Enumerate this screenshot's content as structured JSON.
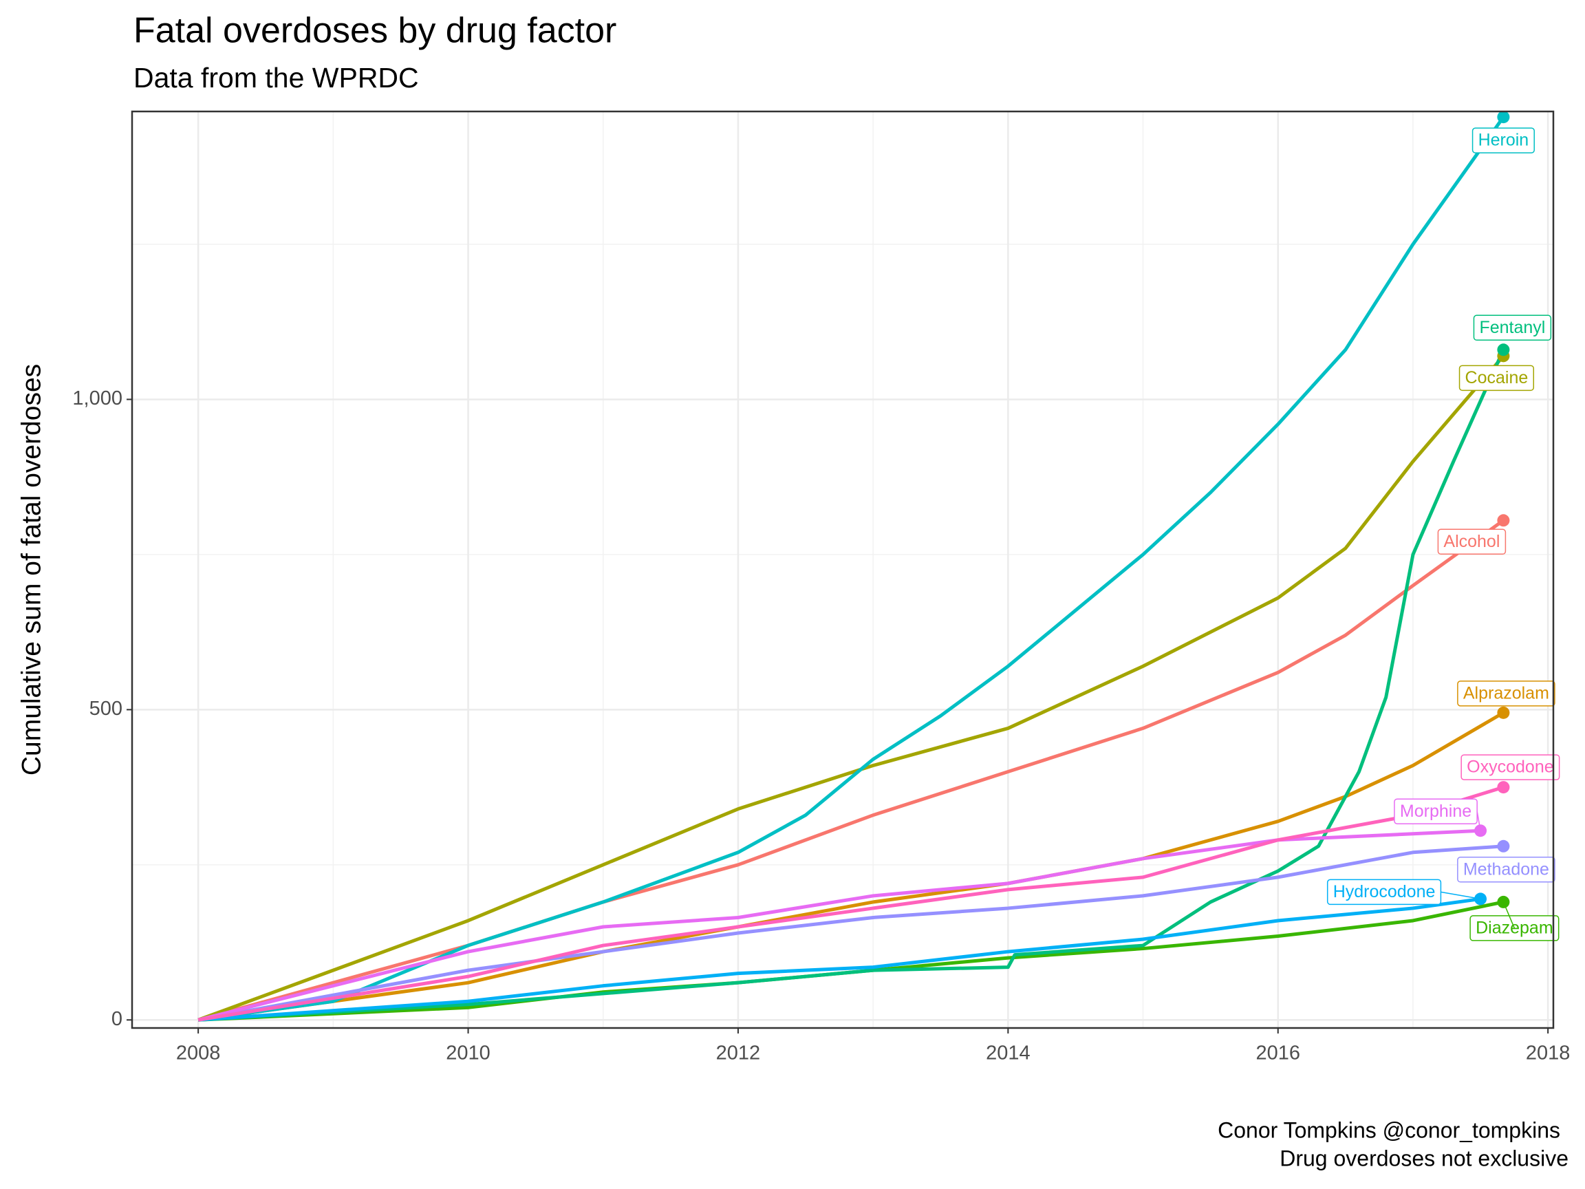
{
  "chart_data": {
    "type": "line",
    "title": "Fatal overdoses by drug factor",
    "subtitle": "Data from the WPRDC",
    "y_label": "Cumulative sum of fatal overdoses",
    "caption": [
      "Conor Tompkins @conor_tompkins",
      "Drug overdoses not exclusive"
    ],
    "xlim": [
      2007.51,
      2018.04
    ],
    "xticks": [
      2008,
      2010,
      2012,
      2014,
      2016,
      2018
    ],
    "ylim": [
      -13,
      1464
    ],
    "yticks": [
      0,
      500,
      {
        "value": 1000,
        "label": "1,000"
      }
    ],
    "grid": true,
    "series": [
      {
        "name": "Alcohol",
        "color": "#F8766D",
        "x": [
          2008,
          2009,
          2010,
          2011,
          2012,
          2013,
          2014,
          2015,
          2016,
          2016.5,
          2017,
          2017.67
        ],
        "values": [
          0,
          60,
          120,
          190,
          250,
          330,
          400,
          470,
          560,
          620,
          700,
          805
        ]
      },
      {
        "name": "Alprazolam",
        "color": "#D89000",
        "x": [
          2008,
          2010,
          2011,
          2012,
          2013,
          2014,
          2015,
          2016,
          2016.5,
          2017,
          2017.67
        ],
        "values": [
          0,
          60,
          110,
          150,
          190,
          220,
          260,
          320,
          360,
          410,
          495
        ]
      },
      {
        "name": "Cocaine",
        "color": "#A3A500",
        "x": [
          2008,
          2009,
          2010,
          2011,
          2012,
          2013,
          2014,
          2015,
          2016,
          2016.5,
          2017,
          2017.67
        ],
        "values": [
          0,
          80,
          160,
          250,
          340,
          410,
          470,
          570,
          680,
          760,
          900,
          1070
        ]
      },
      {
        "name": "Diazepam",
        "color": "#39B600",
        "x": [
          2008,
          2010,
          2011,
          2012,
          2013,
          2014,
          2015,
          2016,
          2017,
          2017.67
        ],
        "values": [
          0,
          20,
          45,
          60,
          80,
          100,
          115,
          135,
          160,
          190
        ]
      },
      {
        "name": "Fentanyl",
        "color": "#00BF7D",
        "x": [
          2008,
          2010,
          2012,
          2013,
          2014,
          2014.05,
          2015,
          2015.5,
          2016,
          2016.3,
          2016.6,
          2016.8,
          2017,
          2017.3,
          2017.67
        ],
        "values": [
          0,
          25,
          60,
          80,
          85,
          105,
          120,
          190,
          240,
          280,
          400,
          520,
          750,
          900,
          1080
        ]
      },
      {
        "name": "Heroin",
        "color": "#00BFC4",
        "x": [
          2008,
          2009,
          2010,
          2011,
          2012,
          2012.5,
          2013,
          2013.5,
          2014,
          2014.5,
          2015,
          2015.5,
          2016,
          2016.5,
          2017,
          2017.67
        ],
        "values": [
          0,
          30,
          120,
          190,
          270,
          330,
          420,
          490,
          570,
          660,
          750,
          850,
          960,
          1080,
          1250,
          1455
        ]
      },
      {
        "name": "Hydrocodone",
        "color": "#00B0F6",
        "x": [
          2008,
          2010,
          2011,
          2012,
          2013,
          2014,
          2015,
          2016,
          2017,
          2017.5
        ],
        "values": [
          0,
          30,
          55,
          75,
          85,
          110,
          130,
          160,
          180,
          195
        ]
      },
      {
        "name": "Methadone",
        "color": "#9590FF",
        "x": [
          2008,
          2010,
          2011,
          2012,
          2013,
          2014,
          2015,
          2016,
          2017,
          2017.67
        ],
        "values": [
          0,
          80,
          110,
          140,
          165,
          180,
          200,
          230,
          270,
          280
        ]
      },
      {
        "name": "Morphine",
        "color": "#E76BF3",
        "x": [
          2008,
          2010,
          2011,
          2012,
          2013,
          2014,
          2015,
          2016,
          2017,
          2017.5
        ],
        "values": [
          0,
          110,
          150,
          165,
          200,
          220,
          260,
          290,
          300,
          305
        ]
      },
      {
        "name": "Oxycodone",
        "color": "#FF62BC",
        "x": [
          2008,
          2010,
          2011,
          2012,
          2013,
          2014,
          2015,
          2016,
          2017,
          2017.67
        ],
        "values": [
          0,
          70,
          120,
          150,
          180,
          210,
          230,
          290,
          330,
          375
        ]
      }
    ]
  }
}
